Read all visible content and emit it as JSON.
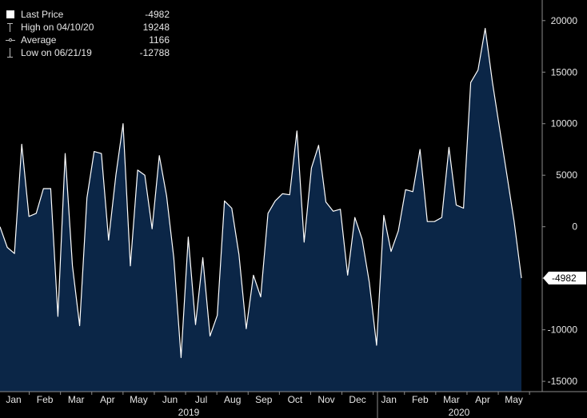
{
  "legend": {
    "items": [
      {
        "label": "Last Price",
        "value": "-4982"
      },
      {
        "label": "High on 04/10/20",
        "value": "19248"
      },
      {
        "label": "Average",
        "value": "1166"
      },
      {
        "label": "Low on 06/21/19",
        "value": "-12788"
      }
    ]
  },
  "chart_data": {
    "type": "area",
    "title": "",
    "xlabel": "",
    "ylabel": "",
    "ylim": [
      -16000,
      22000
    ],
    "y_ticks": [
      20000,
      15000,
      10000,
      5000,
      0,
      -5000,
      -10000,
      -15000
    ],
    "month_labels": [
      "Jan",
      "Feb",
      "Mar",
      "Apr",
      "May",
      "Jun",
      "Jul",
      "Aug",
      "Sep",
      "Oct",
      "Nov",
      "Dec",
      "Jan",
      "Feb",
      "Mar",
      "Apr",
      "May"
    ],
    "year_labels": [
      "2019",
      "2020"
    ],
    "last_value_label": "-4982",
    "colors": {
      "line": "#ffffff",
      "fill": "#0b2647",
      "background": "#000000",
      "axis": "#8c8c8c",
      "text": "#e6e6e6",
      "last_tag_bg": "#ffffff",
      "last_tag_text": "#000000"
    },
    "series": [
      {
        "values": [
          0,
          -2000,
          -2600,
          8000,
          1000,
          1300,
          3700,
          3700,
          -8700,
          7100,
          -3800,
          -9600,
          2800,
          7300,
          7100,
          -1300,
          5000,
          10000,
          -3800,
          5500,
          5000,
          -200,
          6900,
          3000,
          -3000,
          -12700,
          -1000,
          -9500,
          -3000,
          -10600,
          -8600,
          2500,
          1800,
          -2700,
          -9900,
          -4700,
          -6800,
          1300,
          2500,
          3200,
          3100,
          9300,
          -1500,
          5700,
          7900,
          2400,
          1500,
          1700,
          -4700,
          900,
          -1200,
          -5400,
          -11500,
          1100,
          -2400,
          -400,
          3600,
          3400,
          7500,
          500,
          500,
          900,
          7700,
          2100,
          1800,
          14000,
          15200,
          19248,
          14000,
          9500,
          5000,
          500,
          -4982
        ]
      }
    ]
  }
}
